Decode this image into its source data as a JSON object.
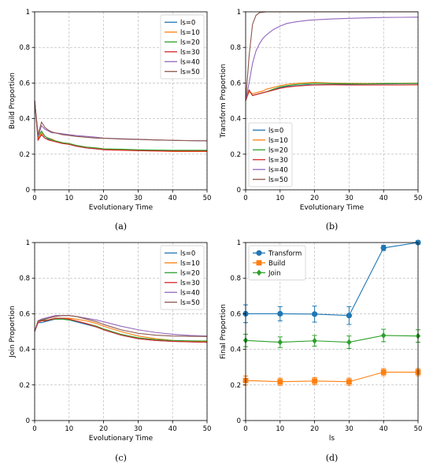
{
  "chart_data": [
    {
      "id": "a",
      "type": "line",
      "caption": "(a)",
      "xlabel": "Evolutionary Time",
      "ylabel": "Build Proportion",
      "xlim": [
        0,
        50
      ],
      "ylim": [
        0,
        1
      ],
      "xticks": [
        0,
        10,
        20,
        30,
        40,
        50
      ],
      "yticks": [
        0.0,
        0.2,
        0.4,
        0.6,
        0.8,
        1.0
      ],
      "grid": true,
      "legend_position": "top-right",
      "x": [
        0,
        1,
        2,
        3,
        4,
        5,
        6,
        8,
        10,
        12,
        15,
        18,
        20,
        25,
        30,
        35,
        40,
        45,
        50
      ],
      "series": [
        {
          "name": "ls=0",
          "color": "#1f77b4",
          "values": [
            0.5,
            0.28,
            0.31,
            0.29,
            0.285,
            0.28,
            0.275,
            0.265,
            0.255,
            0.245,
            0.235,
            0.23,
            0.228,
            0.225,
            0.222,
            0.22,
            0.22,
            0.22,
            0.22
          ]
        },
        {
          "name": "ls=10",
          "color": "#ff7f0e",
          "values": [
            0.5,
            0.29,
            0.32,
            0.3,
            0.29,
            0.285,
            0.275,
            0.265,
            0.26,
            0.25,
            0.24,
            0.235,
            0.23,
            0.225,
            0.22,
            0.218,
            0.215,
            0.215,
            0.215
          ]
        },
        {
          "name": "ls=20",
          "color": "#2ca02c",
          "values": [
            0.5,
            0.3,
            0.33,
            0.3,
            0.29,
            0.28,
            0.275,
            0.265,
            0.26,
            0.25,
            0.24,
            0.235,
            0.23,
            0.228,
            0.225,
            0.223,
            0.222,
            0.222,
            0.222
          ]
        },
        {
          "name": "ls=30",
          "color": "#d62728",
          "values": [
            0.5,
            0.28,
            0.31,
            0.29,
            0.28,
            0.275,
            0.27,
            0.26,
            0.255,
            0.245,
            0.235,
            0.23,
            0.225,
            0.222,
            0.22,
            0.218,
            0.217,
            0.217,
            0.217
          ]
        },
        {
          "name": "ls=40",
          "color": "#9467bd",
          "values": [
            0.5,
            0.3,
            0.36,
            0.34,
            0.33,
            0.32,
            0.32,
            0.315,
            0.31,
            0.305,
            0.3,
            0.295,
            0.29,
            0.287,
            0.284,
            0.28,
            0.278,
            0.276,
            0.275
          ]
        },
        {
          "name": "ls=50",
          "color": "#8c564b",
          "values": [
            0.5,
            0.31,
            0.38,
            0.35,
            0.335,
            0.325,
            0.32,
            0.31,
            0.305,
            0.3,
            0.295,
            0.29,
            0.29,
            0.285,
            0.283,
            0.28,
            0.278,
            0.276,
            0.275
          ]
        }
      ]
    },
    {
      "id": "b",
      "type": "line",
      "caption": "(b)",
      "xlabel": "Evolutionary Time",
      "ylabel": "Transform Proportion",
      "xlim": [
        0,
        50
      ],
      "ylim": [
        0,
        1
      ],
      "xticks": [
        0,
        10,
        20,
        30,
        40,
        50
      ],
      "yticks": [
        0.0,
        0.2,
        0.4,
        0.6,
        0.8,
        1.0
      ],
      "grid": true,
      "legend_position": "bottom-left",
      "x": [
        0,
        1,
        2,
        3,
        4,
        5,
        6,
        8,
        10,
        12,
        15,
        18,
        20,
        25,
        30,
        35,
        40,
        45,
        50
      ],
      "series": [
        {
          "name": "ls=0",
          "color": "#1f77b4",
          "values": [
            0.5,
            0.56,
            0.53,
            0.535,
            0.54,
            0.545,
            0.55,
            0.56,
            0.575,
            0.58,
            0.585,
            0.59,
            0.59,
            0.592,
            0.593,
            0.594,
            0.595,
            0.596,
            0.597
          ]
        },
        {
          "name": "ls=10",
          "color": "#ff7f0e",
          "values": [
            0.5,
            0.55,
            0.54,
            0.545,
            0.55,
            0.555,
            0.565,
            0.575,
            0.585,
            0.592,
            0.598,
            0.602,
            0.603,
            0.6,
            0.598,
            0.597,
            0.598,
            0.598,
            0.6
          ]
        },
        {
          "name": "ls=20",
          "color": "#2ca02c",
          "values": [
            0.5,
            0.56,
            0.53,
            0.535,
            0.54,
            0.545,
            0.55,
            0.565,
            0.578,
            0.585,
            0.592,
            0.596,
            0.598,
            0.597,
            0.596,
            0.595,
            0.597,
            0.597,
            0.598
          ]
        },
        {
          "name": "ls=30",
          "color": "#d62728",
          "values": [
            0.5,
            0.56,
            0.53,
            0.535,
            0.54,
            0.545,
            0.55,
            0.56,
            0.57,
            0.577,
            0.583,
            0.587,
            0.589,
            0.59,
            0.589,
            0.589,
            0.589,
            0.589,
            0.59
          ]
        },
        {
          "name": "ls=40",
          "color": "#9467bd",
          "values": [
            0.5,
            0.6,
            0.71,
            0.78,
            0.82,
            0.85,
            0.87,
            0.9,
            0.92,
            0.935,
            0.945,
            0.952,
            0.955,
            0.96,
            0.963,
            0.966,
            0.968,
            0.969,
            0.97
          ]
        },
        {
          "name": "ls=50",
          "color": "#8c564b",
          "values": [
            0.5,
            0.75,
            0.93,
            0.98,
            0.995,
            0.998,
            1.0,
            1.0,
            1.0,
            1.0,
            1.0,
            1.0,
            1.0,
            1.0,
            1.0,
            1.0,
            1.0,
            1.0,
            1.0
          ]
        }
      ]
    },
    {
      "id": "c",
      "type": "line",
      "caption": "(c)",
      "xlabel": "Evolutionary Time",
      "ylabel": "Join Proportion",
      "xlim": [
        0,
        50
      ],
      "ylim": [
        0,
        1
      ],
      "xticks": [
        0,
        10,
        20,
        30,
        40,
        50
      ],
      "yticks": [
        0.0,
        0.2,
        0.4,
        0.6,
        0.8,
        1.0
      ],
      "grid": true,
      "legend_position": "top-right",
      "x": [
        0,
        1,
        2,
        3,
        4,
        5,
        6,
        8,
        10,
        12,
        15,
        18,
        20,
        25,
        30,
        35,
        40,
        45,
        50
      ],
      "series": [
        {
          "name": "ls=0",
          "color": "#1f77b4",
          "values": [
            0.5,
            0.55,
            0.55,
            0.555,
            0.56,
            0.565,
            0.57,
            0.57,
            0.565,
            0.555,
            0.54,
            0.525,
            0.51,
            0.48,
            0.46,
            0.45,
            0.445,
            0.442,
            0.44
          ]
        },
        {
          "name": "ls=10",
          "color": "#ff7f0e",
          "values": [
            0.5,
            0.56,
            0.56,
            0.56,
            0.565,
            0.57,
            0.57,
            0.575,
            0.575,
            0.57,
            0.56,
            0.545,
            0.53,
            0.5,
            0.475,
            0.46,
            0.45,
            0.445,
            0.442
          ]
        },
        {
          "name": "ls=20",
          "color": "#2ca02c",
          "values": [
            0.5,
            0.56,
            0.56,
            0.565,
            0.565,
            0.57,
            0.57,
            0.57,
            0.565,
            0.56,
            0.545,
            0.53,
            0.515,
            0.485,
            0.465,
            0.455,
            0.45,
            0.448,
            0.447
          ]
        },
        {
          "name": "ls=30",
          "color": "#d62728",
          "values": [
            0.5,
            0.55,
            0.56,
            0.56,
            0.565,
            0.57,
            0.575,
            0.575,
            0.57,
            0.56,
            0.545,
            0.525,
            0.51,
            0.48,
            0.46,
            0.45,
            0.445,
            0.442,
            0.44
          ]
        },
        {
          "name": "ls=40",
          "color": "#9467bd",
          "values": [
            0.5,
            0.56,
            0.57,
            0.575,
            0.58,
            0.585,
            0.59,
            0.59,
            0.59,
            0.585,
            0.575,
            0.565,
            0.555,
            0.53,
            0.51,
            0.495,
            0.485,
            0.478,
            0.475
          ]
        },
        {
          "name": "ls=50",
          "color": "#8c564b",
          "values": [
            0.5,
            0.56,
            0.565,
            0.57,
            0.575,
            0.58,
            0.585,
            0.59,
            0.59,
            0.585,
            0.57,
            0.555,
            0.54,
            0.51,
            0.49,
            0.48,
            0.475,
            0.473,
            0.472
          ]
        }
      ]
    },
    {
      "id": "d",
      "type": "line",
      "caption": "(d)",
      "xlabel": "ls",
      "ylabel": "Final Proportion",
      "xlim": [
        0,
        50
      ],
      "ylim": [
        0,
        1
      ],
      "xticks": [
        0,
        10,
        20,
        30,
        40,
        50
      ],
      "yticks": [
        0.0,
        0.2,
        0.4,
        0.6,
        0.8,
        1.0
      ],
      "grid": true,
      "legend_position": "top-left",
      "x": [
        0,
        10,
        20,
        30,
        40,
        50
      ],
      "series": [
        {
          "name": "Transform",
          "color": "#1f77b4",
          "marker": "circle",
          "values": [
            0.6,
            0.6,
            0.598,
            0.59,
            0.97,
            1.0
          ],
          "errors": [
            0.05,
            0.04,
            0.045,
            0.05,
            0.015,
            0.01
          ]
        },
        {
          "name": "Build",
          "color": "#ff7f0e",
          "marker": "square",
          "values": [
            0.225,
            0.218,
            0.222,
            0.218,
            0.272,
            0.272
          ],
          "errors": [
            0.025,
            0.02,
            0.02,
            0.02,
            0.02,
            0.02
          ]
        },
        {
          "name": "Join",
          "color": "#2ca02c",
          "marker": "diamond",
          "values": [
            0.45,
            0.44,
            0.448,
            0.44,
            0.478,
            0.475
          ],
          "errors": [
            0.035,
            0.03,
            0.03,
            0.035,
            0.035,
            0.035
          ]
        }
      ]
    }
  ]
}
